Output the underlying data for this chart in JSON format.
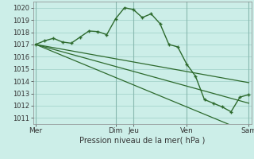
{
  "background_color": "#cceee8",
  "grid_color": "#aad8d0",
  "line_color": "#2d6a2d",
  "title": "Pression niveau de la mer( hPa )",
  "ylim": [
    1010.5,
    1020.5
  ],
  "yticks": [
    1011,
    1012,
    1013,
    1014,
    1015,
    1016,
    1017,
    1018,
    1019,
    1020
  ],
  "xtick_labels": [
    "Mer",
    "Dim",
    "Jeu",
    "Ven",
    "Sam"
  ],
  "xtick_positions": [
    0,
    9,
    11,
    17,
    24
  ],
  "vline_positions": [
    0,
    9,
    11,
    17,
    24
  ],
  "total_points": 25,
  "line1": [
    1017.0,
    1017.3,
    1017.5,
    1017.2,
    1017.1,
    1017.6,
    1018.1,
    1018.05,
    1017.8,
    1019.1,
    1020.0,
    1019.85,
    1019.2,
    1019.5,
    1018.7,
    1017.0,
    1016.8,
    1015.4,
    1014.4,
    1012.5,
    1012.2,
    1011.9,
    1011.5,
    1012.7,
    1012.9
  ],
  "line2": [
    1017.0,
    1016.87,
    1016.74,
    1016.61,
    1016.48,
    1016.35,
    1016.22,
    1016.09,
    1015.96,
    1015.83,
    1015.7,
    1015.57,
    1015.44,
    1015.31,
    1015.18,
    1015.05,
    1014.92,
    1014.79,
    1014.66,
    1014.53,
    1014.4,
    1014.27,
    1014.14,
    1014.01,
    1013.88
  ],
  "line3": [
    1017.0,
    1016.8,
    1016.6,
    1016.4,
    1016.2,
    1016.0,
    1015.8,
    1015.6,
    1015.4,
    1015.2,
    1015.0,
    1014.8,
    1014.6,
    1014.4,
    1014.2,
    1014.0,
    1013.8,
    1013.6,
    1013.4,
    1013.2,
    1013.0,
    1012.8,
    1012.6,
    1012.4,
    1012.2
  ],
  "line4": [
    1017.0,
    1016.7,
    1016.4,
    1016.1,
    1015.8,
    1015.5,
    1015.2,
    1014.9,
    1014.6,
    1014.3,
    1014.0,
    1013.7,
    1013.4,
    1013.1,
    1012.8,
    1012.5,
    1012.2,
    1011.9,
    1011.6,
    1011.3,
    1011.0,
    1010.7,
    1010.4,
    1010.1,
    1009.8
  ]
}
